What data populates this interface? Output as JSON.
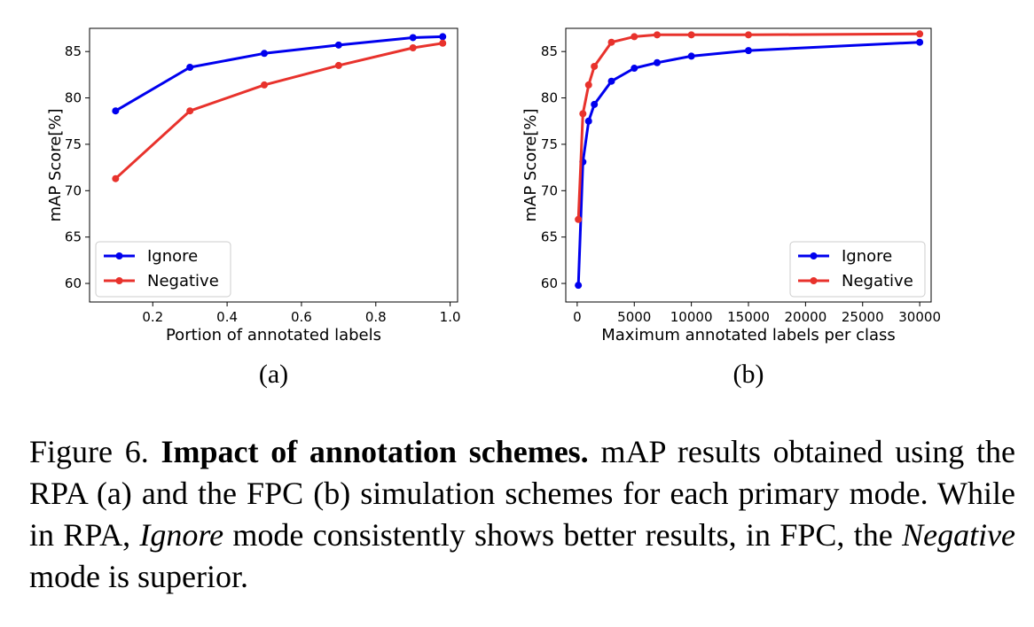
{
  "chart_data": [
    {
      "type": "line",
      "panel_label": "(a)",
      "xlabel": "Portion of annotated labels",
      "ylabel": "mAP Score[%]",
      "xlim": [
        0.03,
        1.02
      ],
      "ylim": [
        58.0,
        87.5
      ],
      "xticks": [
        0.2,
        0.4,
        0.6,
        0.8,
        1.0
      ],
      "xtick_labels": [
        "0.2",
        "0.4",
        "0.6",
        "0.8",
        "1.0"
      ],
      "yticks": [
        60,
        65,
        70,
        75,
        80,
        85
      ],
      "ytick_labels": [
        "60",
        "65",
        "70",
        "75",
        "80",
        "85"
      ],
      "grid": false,
      "legend": "lower-left",
      "series": [
        {
          "name": "Ignore",
          "color": "#0000ee",
          "x": [
            0.1,
            0.3,
            0.5,
            0.7,
            0.9,
            0.98
          ],
          "y": [
            78.6,
            83.3,
            84.8,
            85.7,
            86.5,
            86.6
          ]
        },
        {
          "name": "Negative",
          "color": "#e8322c",
          "x": [
            0.1,
            0.3,
            0.5,
            0.7,
            0.9,
            0.98
          ],
          "y": [
            71.3,
            78.6,
            81.4,
            83.5,
            85.4,
            85.9
          ]
        }
      ]
    },
    {
      "type": "line",
      "panel_label": "(b)",
      "xlabel": "Maximum annotated labels per class",
      "ylabel": "mAP Score[%]",
      "xlim": [
        -1000,
        31000
      ],
      "ylim": [
        58.0,
        87.5
      ],
      "xticks": [
        0,
        5000,
        10000,
        15000,
        20000,
        25000,
        30000
      ],
      "xtick_labels": [
        "0",
        "5000",
        "10000",
        "15000",
        "20000",
        "25000",
        "30000"
      ],
      "yticks": [
        60,
        65,
        70,
        75,
        80,
        85
      ],
      "ytick_labels": [
        "60",
        "65",
        "70",
        "75",
        "80",
        "85"
      ],
      "grid": false,
      "legend": "lower-right",
      "series": [
        {
          "name": "Ignore",
          "color": "#0000ee",
          "x": [
            100,
            500,
            1000,
            1500,
            3000,
            5000,
            7000,
            10000,
            15000,
            30000
          ],
          "y": [
            59.8,
            73.1,
            77.5,
            79.3,
            81.8,
            83.2,
            83.8,
            84.5,
            85.1,
            86.0
          ]
        },
        {
          "name": "Negative",
          "color": "#e8322c",
          "x": [
            100,
            500,
            1000,
            1500,
            3000,
            5000,
            7000,
            10000,
            15000,
            30000
          ],
          "y": [
            66.9,
            78.3,
            81.4,
            83.4,
            86.0,
            86.6,
            86.8,
            86.8,
            86.8,
            86.9
          ]
        }
      ]
    }
  ],
  "caption": {
    "label": "Figure 6.",
    "title": "Impact of annotation schemes.",
    "text1": "mAP results obtained using the RPA (a) and the FPC (b) simulation schemes for each primary mode.  While in RPA,",
    "em1": "Ignore",
    "text2": "mode consistently shows better results, in FPC, the",
    "em2": "Negative",
    "text3": "mode is superior."
  }
}
